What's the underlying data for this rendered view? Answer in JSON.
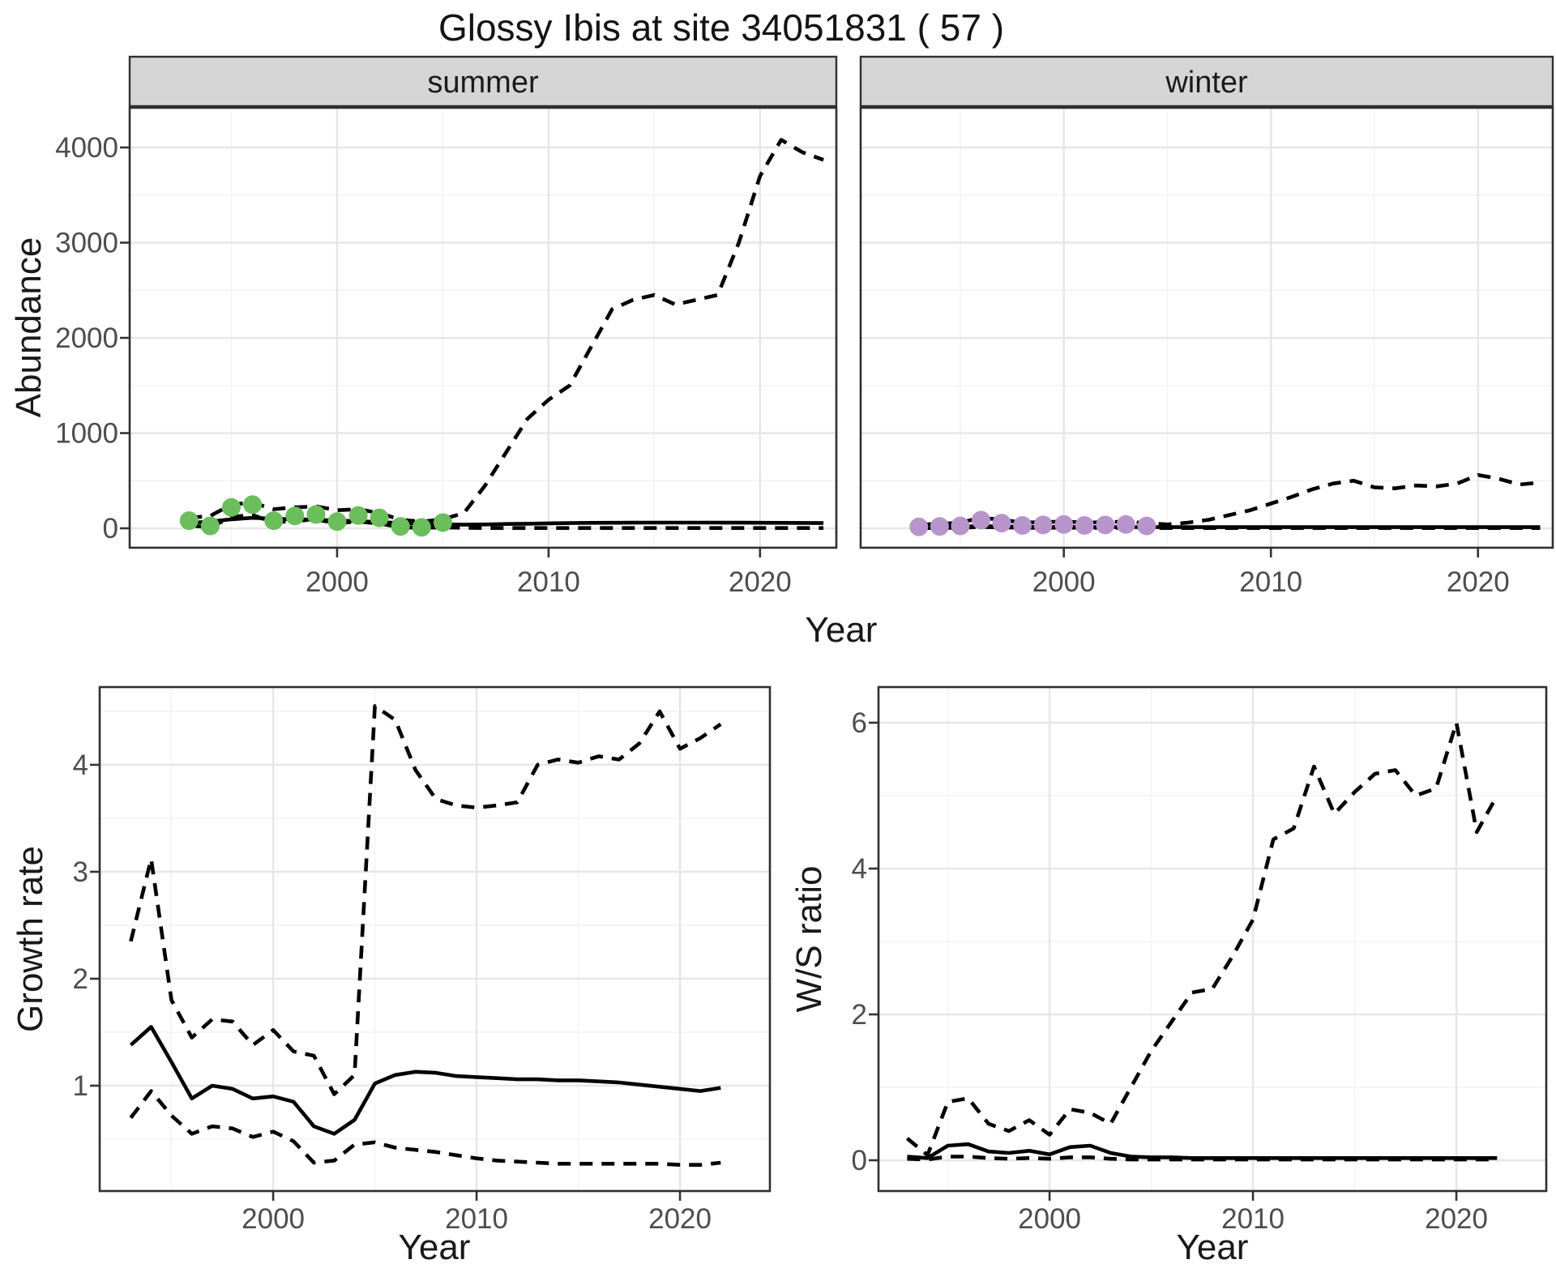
{
  "title": "Glossy Ibis at site 34051831 ( 57 )",
  "colors": {
    "summer_points": "#6BBE5B",
    "winter_points": "#B795CA",
    "line": "#000000",
    "grid_major": "#E6E6E6",
    "grid_minor": "#F2F2F2",
    "strip_bg": "#D5D5D5",
    "panel_border": "#2F2F2F",
    "tick_text": "#4D4D4D",
    "axis_title_text": "#191919"
  },
  "top": {
    "facets": [
      "summer",
      "winter"
    ],
    "ylabel": "Abundance",
    "xlabel": "Year"
  },
  "bottom_left": {
    "ylabel": "Growth rate",
    "xlabel": "Year"
  },
  "bottom_right": {
    "ylabel": "W/S ratio",
    "xlabel": "Year"
  },
  "chart_data": [
    {
      "id": "summer",
      "type": "line",
      "facet": "summer",
      "ylabel": "Abundance",
      "xlabel": "Year",
      "x": [
        1993,
        1994,
        1995,
        1996,
        1997,
        1998,
        1999,
        2000,
        2001,
        2002,
        2003,
        2004,
        2005,
        2006,
        2007,
        2008,
        2009,
        2010,
        2011,
        2012,
        2013,
        2014,
        2015,
        2016,
        2017,
        2018,
        2019,
        2020,
        2021,
        2022,
        2023
      ],
      "series": [
        {
          "name": "upper_ci",
          "style": "dashed",
          "values": [
            110,
            130,
            250,
            270,
            200,
            220,
            230,
            190,
            200,
            160,
            90,
            70,
            95,
            160,
            450,
            800,
            1150,
            1350,
            1500,
            1900,
            2300,
            2400,
            2450,
            2350,
            2400,
            2450,
            3000,
            3700,
            4080,
            3950,
            3870
          ]
        },
        {
          "name": "lower_ci",
          "style": "dashed",
          "values": [
            30,
            10,
            120,
            140,
            60,
            80,
            90,
            55,
            70,
            50,
            10,
            5,
            10,
            5,
            3,
            3,
            3,
            3,
            3,
            3,
            3,
            3,
            3,
            3,
            3,
            3,
            3,
            3,
            3,
            3,
            3
          ]
        },
        {
          "name": "fit",
          "style": "solid",
          "values": [
            55,
            70,
            95,
            110,
            100,
            95,
            90,
            80,
            75,
            65,
            55,
            45,
            40,
            38,
            40,
            45,
            48,
            52,
            55,
            57,
            58,
            59,
            60,
            60,
            60,
            60,
            59,
            58,
            57,
            56,
            55
          ]
        }
      ],
      "points": {
        "name": "observed-summer-counts",
        "color": "#6BBE5B",
        "x": [
          1993,
          1994,
          1995,
          1996,
          1997,
          1998,
          1999,
          2000,
          2001,
          2002,
          2003,
          2004,
          2005
        ],
        "y": [
          80,
          25,
          220,
          250,
          80,
          130,
          145,
          70,
          135,
          110,
          20,
          10,
          60
        ]
      },
      "xlim": [
        1990.19,
        2023.61
      ],
      "ylim": [
        -204,
        4417
      ],
      "yticks": [
        0,
        1000,
        2000,
        3000,
        4000
      ],
      "y_minor": [
        500,
        1500,
        2500,
        3500
      ],
      "xticks": [
        2000,
        2010,
        2020
      ],
      "x_minor": [
        1995,
        2005,
        2015
      ]
    },
    {
      "id": "winter",
      "type": "line",
      "facet": "winter",
      "ylabel": "Abundance",
      "xlabel": "Year",
      "x": [
        1993,
        1994,
        1995,
        1996,
        1997,
        1998,
        1999,
        2000,
        2001,
        2002,
        2003,
        2004,
        2005,
        2006,
        2007,
        2008,
        2009,
        2010,
        2011,
        2012,
        2013,
        2014,
        2015,
        2016,
        2017,
        2018,
        2019,
        2020,
        2021,
        2022,
        2023
      ],
      "series": [
        {
          "name": "upper_ci",
          "style": "dashed",
          "values": [
            40,
            45,
            60,
            110,
            90,
            60,
            65,
            70,
            60,
            65,
            70,
            55,
            40,
            60,
            90,
            140,
            190,
            260,
            330,
            410,
            470,
            500,
            430,
            420,
            450,
            440,
            470,
            560,
            520,
            460,
            480
          ]
        },
        {
          "name": "lower_ci",
          "style": "dashed",
          "values": [
            3,
            3,
            5,
            15,
            10,
            5,
            5,
            6,
            5,
            5,
            5,
            4,
            3,
            3,
            3,
            3,
            3,
            3,
            3,
            3,
            3,
            3,
            3,
            3,
            3,
            3,
            3,
            3,
            3,
            3,
            3
          ]
        },
        {
          "name": "fit",
          "style": "solid",
          "values": [
            12,
            14,
            18,
            22,
            20,
            16,
            15,
            15,
            14,
            14,
            13,
            13,
            12,
            12,
            12,
            12,
            12,
            12,
            12,
            12,
            12,
            12,
            12,
            12,
            12,
            12,
            12,
            12,
            12,
            12,
            12
          ]
        }
      ],
      "points": {
        "name": "observed-winter-counts",
        "color": "#B795CA",
        "x": [
          1993,
          1994,
          1995,
          1996,
          1997,
          1998,
          1999,
          2000,
          2001,
          2002,
          2003,
          2004
        ],
        "y": [
          15,
          20,
          25,
          85,
          55,
          30,
          35,
          40,
          30,
          35,
          40,
          25
        ]
      },
      "xlim": [
        1990.19,
        2023.61
      ],
      "ylim": [
        -204,
        4417
      ],
      "yticks": [],
      "y_minor": [
        500,
        1500,
        2500,
        3500
      ],
      "xticks": [
        2000,
        2010,
        2020
      ],
      "x_minor": [
        1995,
        2005,
        2015
      ]
    },
    {
      "id": "growth",
      "type": "line",
      "title": "Growth rate",
      "ylabel": "Growth rate",
      "xlabel": "Year",
      "x": [
        1993,
        1994,
        1995,
        1996,
        1997,
        1998,
        1999,
        2000,
        2001,
        2002,
        2003,
        2004,
        2005,
        2006,
        2007,
        2008,
        2009,
        2010,
        2011,
        2012,
        2013,
        2014,
        2015,
        2016,
        2017,
        2018,
        2019,
        2020,
        2021,
        2022
      ],
      "series": [
        {
          "name": "upper_ci",
          "style": "dashed",
          "values": [
            2.35,
            3.12,
            1.8,
            1.45,
            1.62,
            1.6,
            1.38,
            1.52,
            1.32,
            1.28,
            0.92,
            1.1,
            4.55,
            4.42,
            3.95,
            3.68,
            3.62,
            3.6,
            3.62,
            3.65,
            4.0,
            4.05,
            4.02,
            4.08,
            4.05,
            4.2,
            4.5,
            4.15,
            4.25,
            4.38
          ]
        },
        {
          "name": "lower_ci",
          "style": "dashed",
          "values": [
            0.7,
            0.95,
            0.72,
            0.55,
            0.62,
            0.6,
            0.52,
            0.57,
            0.48,
            0.28,
            0.3,
            0.45,
            0.47,
            0.42,
            0.4,
            0.38,
            0.35,
            0.32,
            0.3,
            0.29,
            0.28,
            0.27,
            0.27,
            0.27,
            0.27,
            0.27,
            0.27,
            0.26,
            0.26,
            0.28
          ]
        },
        {
          "name": "fit",
          "style": "solid",
          "values": [
            1.38,
            1.55,
            1.22,
            0.88,
            1.0,
            0.97,
            0.88,
            0.9,
            0.85,
            0.62,
            0.55,
            0.68,
            1.02,
            1.1,
            1.13,
            1.12,
            1.09,
            1.08,
            1.07,
            1.06,
            1.06,
            1.05,
            1.05,
            1.04,
            1.03,
            1.01,
            0.99,
            0.97,
            0.95,
            0.98
          ]
        }
      ],
      "xlim": [
        1991.47,
        2024.42
      ],
      "ylim": [
        0.015,
        4.727
      ],
      "yticks": [
        1,
        2,
        3,
        4
      ],
      "y_minor": [
        0.5,
        1.5,
        2.5,
        3.5,
        4.5
      ],
      "xticks": [
        2000,
        2010,
        2020
      ],
      "x_minor": [
        1995,
        2005,
        2015
      ]
    },
    {
      "id": "ws",
      "type": "line",
      "title": "W/S ratio",
      "ylabel": "W/S ratio",
      "xlabel": "Year",
      "x": [
        1993,
        1994,
        1995,
        1996,
        1997,
        1998,
        1999,
        2000,
        2001,
        2002,
        2003,
        2004,
        2005,
        2006,
        2007,
        2008,
        2009,
        2010,
        2011,
        2012,
        2013,
        2014,
        2015,
        2016,
        2017,
        2018,
        2019,
        2020,
        2021,
        2022
      ],
      "series": [
        {
          "name": "upper_ci",
          "style": "dashed",
          "values": [
            0.3,
            0.07,
            0.8,
            0.85,
            0.5,
            0.4,
            0.55,
            0.35,
            0.7,
            0.65,
            0.5,
            1.0,
            1.5,
            1.9,
            2.3,
            2.35,
            2.8,
            3.3,
            4.4,
            4.55,
            5.4,
            4.75,
            5.05,
            5.3,
            5.35,
            5.0,
            5.1,
            6.0,
            4.5,
            5.0
          ]
        },
        {
          "name": "lower_ci",
          "style": "dashed",
          "values": [
            0.02,
            0.01,
            0.05,
            0.05,
            0.03,
            0.02,
            0.03,
            0.02,
            0.04,
            0.04,
            0.02,
            0.01,
            0.01,
            0.01,
            0.01,
            0.01,
            0.01,
            0.01,
            0.01,
            0.01,
            0.01,
            0.01,
            0.01,
            0.01,
            0.01,
            0.01,
            0.01,
            0.01,
            0.01,
            0.01
          ]
        },
        {
          "name": "fit",
          "style": "solid",
          "values": [
            0.05,
            0.03,
            0.2,
            0.22,
            0.12,
            0.1,
            0.13,
            0.08,
            0.18,
            0.2,
            0.1,
            0.05,
            0.04,
            0.04,
            0.03,
            0.03,
            0.03,
            0.03,
            0.03,
            0.03,
            0.03,
            0.03,
            0.03,
            0.03,
            0.03,
            0.03,
            0.03,
            0.03,
            0.03,
            0.03
          ]
        }
      ],
      "xlim": [
        1991.59,
        2024.42
      ],
      "ylim": [
        -0.422,
        6.489
      ],
      "yticks": [
        0,
        2,
        4,
        6
      ],
      "y_minor": [
        1,
        3,
        5
      ],
      "xticks": [
        2000,
        2010,
        2020
      ],
      "x_minor": [
        1995,
        2005,
        2015
      ]
    }
  ]
}
